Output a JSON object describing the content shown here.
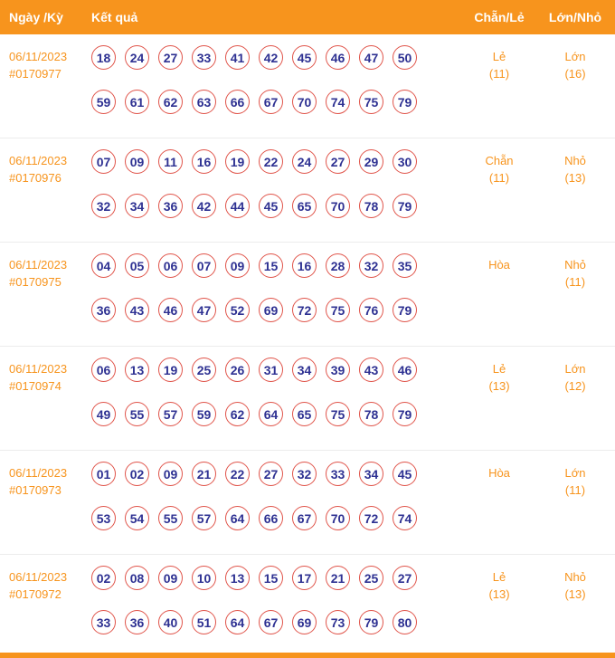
{
  "header": {
    "date": "Ngày /Kỳ",
    "result": "Kết quả",
    "even_odd": "Chẵn/Lẻ",
    "big_small": "Lớn/Nhỏ"
  },
  "colors": {
    "header_bg": "#f7941d",
    "accent": "#f7941d",
    "ball_border": "#e0544a",
    "ball_text": "#2e3192"
  },
  "rows": [
    {
      "date": "06/11/2023",
      "period": "#0170977",
      "numbers": [
        [
          "18",
          "24",
          "27",
          "33",
          "41",
          "42",
          "45",
          "46",
          "47",
          "50"
        ],
        [
          "59",
          "61",
          "62",
          "63",
          "66",
          "67",
          "70",
          "74",
          "75",
          "79"
        ]
      ],
      "even_odd": "Lẻ",
      "even_odd_count": "(11)",
      "big_small": "Lớn",
      "big_small_count": "(16)"
    },
    {
      "date": "06/11/2023",
      "period": "#0170976",
      "numbers": [
        [
          "07",
          "09",
          "11",
          "16",
          "19",
          "22",
          "24",
          "27",
          "29",
          "30"
        ],
        [
          "32",
          "34",
          "36",
          "42",
          "44",
          "45",
          "65",
          "70",
          "78",
          "79"
        ]
      ],
      "even_odd": "Chẵn",
      "even_odd_count": "(11)",
      "big_small": "Nhỏ",
      "big_small_count": "(13)"
    },
    {
      "date": "06/11/2023",
      "period": "#0170975",
      "numbers": [
        [
          "04",
          "05",
          "06",
          "07",
          "09",
          "15",
          "16",
          "28",
          "32",
          "35"
        ],
        [
          "36",
          "43",
          "46",
          "47",
          "52",
          "69",
          "72",
          "75",
          "76",
          "79"
        ]
      ],
      "even_odd": "Hòa",
      "even_odd_count": "",
      "big_small": "Nhỏ",
      "big_small_count": "(11)"
    },
    {
      "date": "06/11/2023",
      "period": "#0170974",
      "numbers": [
        [
          "06",
          "13",
          "19",
          "25",
          "26",
          "31",
          "34",
          "39",
          "43",
          "46"
        ],
        [
          "49",
          "55",
          "57",
          "59",
          "62",
          "64",
          "65",
          "75",
          "78",
          "79"
        ]
      ],
      "even_odd": "Lẻ",
      "even_odd_count": "(13)",
      "big_small": "Lớn",
      "big_small_count": "(12)"
    },
    {
      "date": "06/11/2023",
      "period": "#0170973",
      "numbers": [
        [
          "01",
          "02",
          "09",
          "21",
          "22",
          "27",
          "32",
          "33",
          "34",
          "45"
        ],
        [
          "53",
          "54",
          "55",
          "57",
          "64",
          "66",
          "67",
          "70",
          "72",
          "74"
        ]
      ],
      "even_odd": "Hòa",
      "even_odd_count": "",
      "big_small": "Lớn",
      "big_small_count": "(11)"
    },
    {
      "date": "06/11/2023",
      "period": "#0170972",
      "numbers": [
        [
          "02",
          "08",
          "09",
          "10",
          "13",
          "15",
          "17",
          "21",
          "25",
          "27"
        ],
        [
          "33",
          "36",
          "40",
          "51",
          "64",
          "67",
          "69",
          "73",
          "79",
          "80"
        ]
      ],
      "even_odd": "Lẻ",
      "even_odd_count": "(13)",
      "big_small": "Nhỏ",
      "big_small_count": "(13)"
    }
  ]
}
